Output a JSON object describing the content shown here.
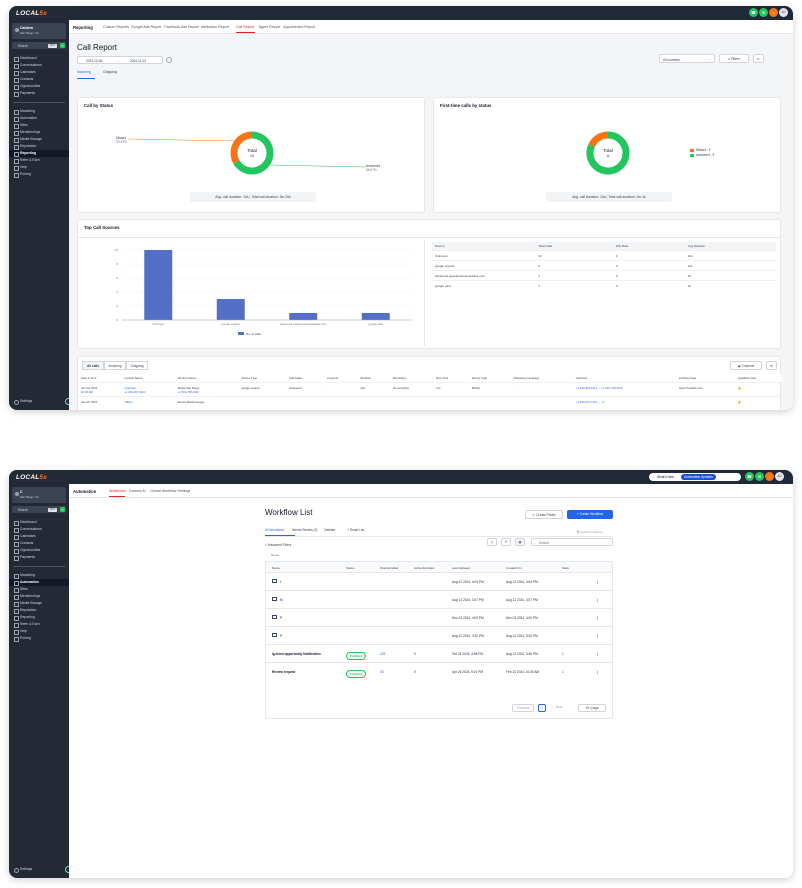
{
  "brand": {
    "logo_prefix": "LOCAL",
    "logo_suffix": "5x",
    "accent": "#f97316",
    "sidebar_bg": "#232a36"
  },
  "window1": {
    "location": {
      "name": "Caldera",
      "sub": "San Diego, CA"
    },
    "search": {
      "label": "Search",
      "shortcut": "ctrl K"
    },
    "nav": [
      "Dashboard",
      "Conversations",
      "Calendars",
      "Contacts",
      "Opportunities",
      "Payments",
      "Marketing",
      "Automation",
      "Sites",
      "Memberships",
      "Media Storage",
      "Reputation",
      "Reporting",
      "Refer & Earn",
      "Help",
      "Porting"
    ],
    "active_nav": "Reporting",
    "settings": "Settings",
    "subnav": {
      "section": "Reporting",
      "tabs": [
        "Custom Reports",
        "Google Ads Report",
        "Facebook Ads Report",
        "Attribution Report",
        "Call Report",
        "Agent Report",
        "Appointment Report"
      ],
      "active": "Call Report"
    },
    "page_title": "Call Report",
    "date_from": "2024-10-06",
    "date_to": "2024-11-03",
    "number_filter": "All numbers",
    "filters_label": "Filters",
    "direction_tabs": [
      "Incoming",
      "Outgoing"
    ],
    "status_card": {
      "title": "Call by Status",
      "center_label": "Total",
      "center_value": "15",
      "missed_label": "Missed",
      "missed_pct": "33.33%",
      "answered_label": "Answered",
      "answered_pct": "66.67%",
      "missed_value": 5,
      "answered_value": 10,
      "avg_duration": "Avg. call duration: 14s",
      "total_duration": "Total call duration: 3m 20s"
    },
    "first_time_card": {
      "title": "First-time calls by status",
      "center_label": "Total",
      "center_value": "11",
      "legend": [
        {
          "label": "Missed : 2",
          "color": "#f97316"
        },
        {
          "label": "answered : 9",
          "color": "#22c55e"
        }
      ],
      "missed_value": 2,
      "answered_value": 9,
      "avg_duration": "Avg. call duration: 13s",
      "total_duration": "Total call duration: 2m 4s"
    },
    "sources_card": {
      "title": "Top Call Sources",
      "legend": "No. of calls",
      "table_headers": [
        "Source",
        "Total Calls",
        "Win Rate",
        "Avg Duration"
      ],
      "rows": [
        {
          "source": "Unknown",
          "calls": "10",
          "win": "0",
          "avg": "14s"
        },
        {
          "source": "google organic",
          "calls": "3",
          "win": "0",
          "avg": "11s"
        },
        {
          "source": "advanced.organicpartnerwebsite.com",
          "calls": "1",
          "win": "0",
          "avg": "0s"
        },
        {
          "source": "google paid",
          "calls": "1",
          "win": "0",
          "avg": "0s"
        }
      ]
    },
    "calls_table": {
      "tabs": [
        "All calls",
        "Incoming",
        "Outgoing"
      ],
      "columns_button": "Columns",
      "headers": [
        "Date & Time",
        "Contact Name",
        "Number Name",
        "Source Type",
        "Call Status",
        "Keyword",
        "Duration",
        "Recording",
        "First Time",
        "Device Type",
        "Marketing Campaign",
        "Call Flow",
        "Landing Page",
        "Qualified Lead"
      ],
      "rows": [
        {
          "date": "Jan 30, 2025",
          "time": "10:00 AM",
          "contact": "Unknown",
          "contact_num": "+1 619-367-4113",
          "number_name": "Digital San Diego",
          "number_num": "+1 619-728-3110",
          "source": "google organic",
          "status": "Answered",
          "keyword": "-",
          "duration": "20s",
          "recording": "No recording",
          "first": "Yes",
          "device": "Mobile",
          "campaign": "-",
          "flow": "+1 619-393-4113 → +1 619-728-3110",
          "landing": "https://localSix.com"
        },
        {
          "date": "Jan 30, 2025",
          "time": "",
          "contact": "Tiffany",
          "contact_num": "",
          "number_name": "Moved Media Google",
          "number_num": "",
          "source": "",
          "status": "",
          "keyword": "",
          "duration": "",
          "recording": "",
          "first": "",
          "device": "",
          "campaign": "",
          "flow": "+1 619-407-7341 → +1",
          "landing": ""
        }
      ]
    }
  },
  "window2": {
    "location": {
      "name": "C",
      "sub": "San Diego, CA"
    },
    "search": {
      "label": "Search",
      "shortcut": "ctrl K"
    },
    "nav": [
      "Dashboard",
      "Conversations",
      "Calendars",
      "Contacts",
      "Opportunities",
      "Payments",
      "Marketing",
      "Automation",
      "Sites",
      "Memberships",
      "Media Storage",
      "Reputation",
      "Reporting",
      "Refer & Earn",
      "Help",
      "Porting"
    ],
    "active_nav": "Automation",
    "settings": "Settings",
    "subnav": {
      "section": "Automation",
      "tabs": [
        "Workflows",
        "Content AI",
        "Global Workflow Settings"
      ],
      "active": "Workflows"
    },
    "top_badge_1": "What's New",
    "top_badge_2": "Automation Updates",
    "page_title": "Workflow List",
    "create_folder": "Create Folder",
    "create_workflow": "+ Create Workflow",
    "recycle_bin": "Deleted workflows",
    "list_tabs": [
      "All Workflows",
      "Needs Review (0)",
      "Deleted"
    ],
    "smart_list": "+ Smart List",
    "advanced_filters": "+ Advanced Filters",
    "search_placeholder": "Search",
    "sort_label": "Name",
    "headers": [
      "Name",
      "Status",
      "Total Enrolled",
      "Active Enrolled",
      "Last Updated",
      "Created On",
      "Stats"
    ],
    "rows": [
      {
        "name": "1",
        "folder": true,
        "status": "",
        "total": "",
        "active": "",
        "updated": "Aug 12 2024, 4:04 PM",
        "created": "Aug 12 2024, 4:04 PM",
        "stats": ""
      },
      {
        "name": "M",
        "folder": true,
        "status": "",
        "total": "",
        "active": "",
        "updated": "Aug 12 2024, 3:07 PM",
        "created": "Aug 12 2024, 3:07 PM",
        "stats": ""
      },
      {
        "name": "P",
        "folder": true,
        "status": "",
        "total": "",
        "active": "",
        "updated": "Dec 03 2024, 4:00 PM",
        "created": "Dec 03 2024, 4:00 PM",
        "stats": ""
      },
      {
        "name": "P",
        "folder": true,
        "status": "",
        "total": "",
        "active": "",
        "updated": "Aug 12 2024, 3:32 PM",
        "created": "Aug 12 2024, 3:32 PM",
        "stats": ""
      },
      {
        "name": "Ig-tered opportunity Notification",
        "folder": false,
        "status": "Published",
        "total": "233",
        "active": "0",
        "updated": "Oct 24 2024, 4:58 PM",
        "created": "Aug 12 2024, 3:46 PM",
        "stats": "1"
      },
      {
        "name": "Review request",
        "folder": false,
        "status": "Published",
        "total": "33",
        "active": "0",
        "updated": "Apr 25 2024, 5:01 PM",
        "created": "Feb 13 2024, 10:30 AM",
        "stats": "1"
      }
    ],
    "pagination": {
      "prev": "Previous",
      "page": "1",
      "next": "Next",
      "per_page": "10 / page"
    }
  }
}
